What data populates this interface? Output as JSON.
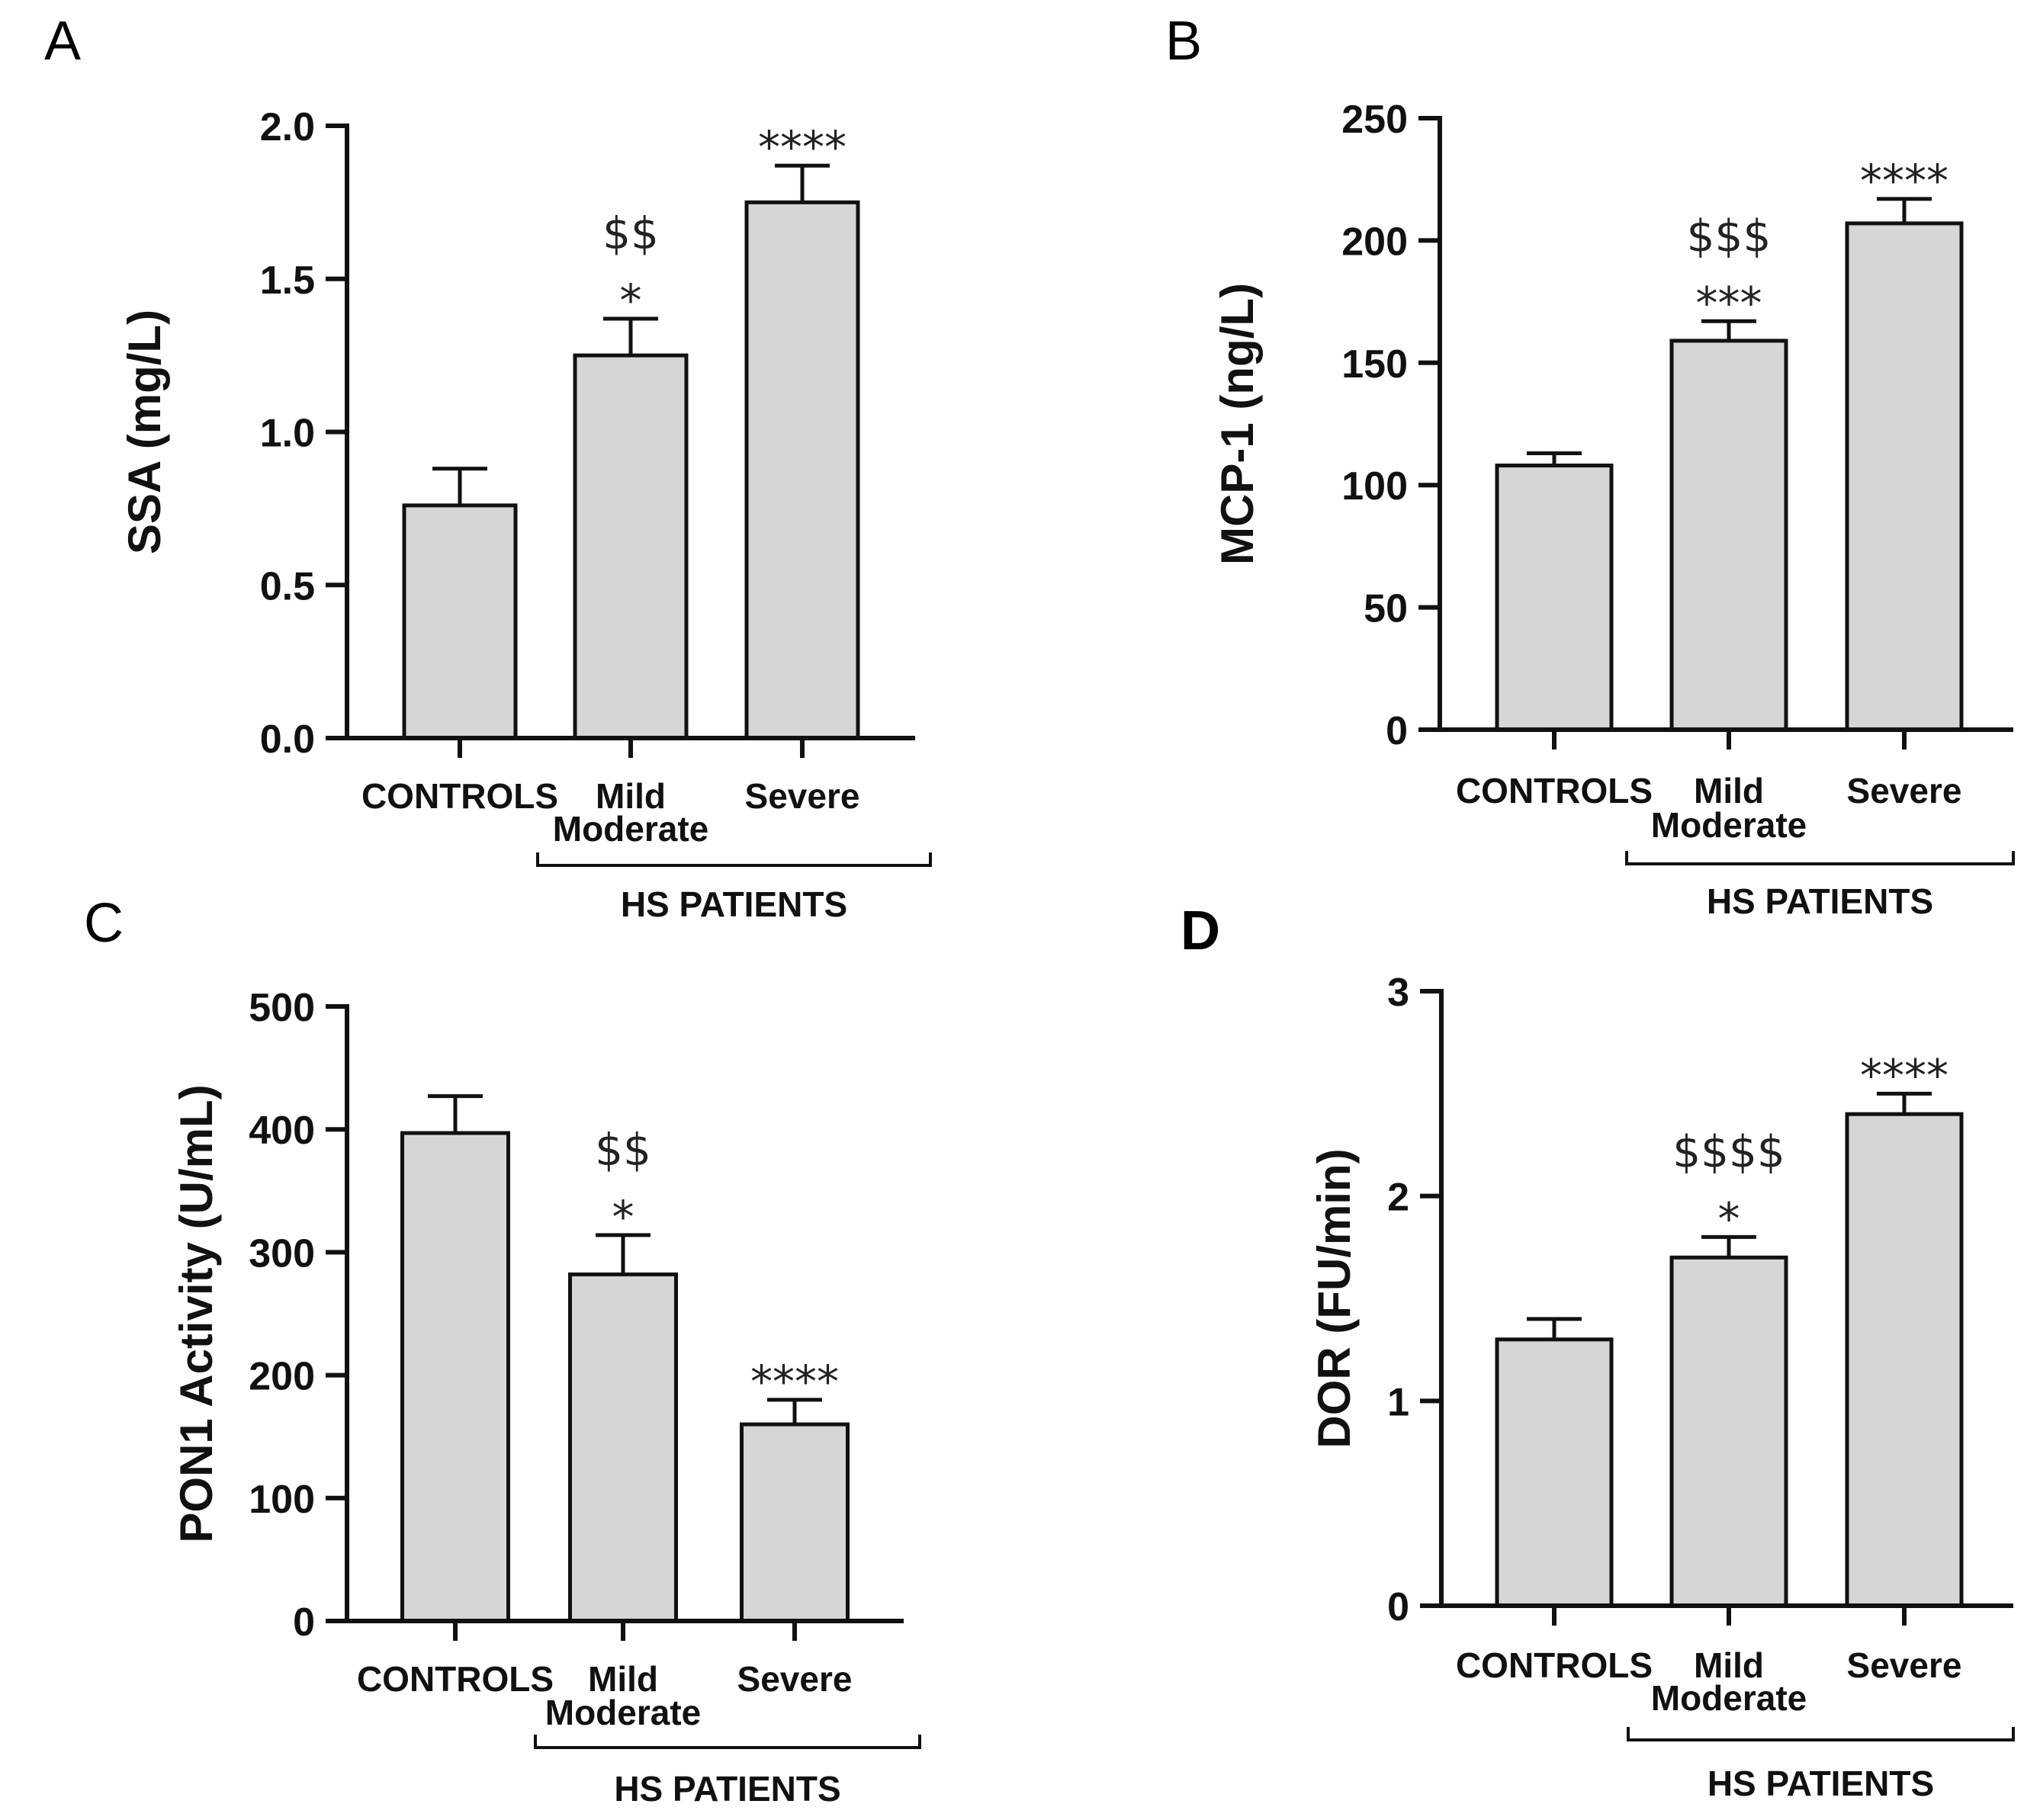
{
  "chart_data": [
    {
      "type": "bar",
      "panel": "A",
      "categories": [
        "CONTROLS",
        "Mild\nModerate",
        "Severe"
      ],
      "values": [
        0.76,
        1.25,
        1.75
      ],
      "errors": [
        0.12,
        0.12,
        0.12
      ],
      "significance": [
        "",
        "$$\n*",
        "****"
      ],
      "ylabel": "SSA (mg/L)",
      "ylim": [
        0,
        2.0
      ],
      "yticks": [
        0.0,
        0.5,
        1.0,
        1.5,
        2.0
      ],
      "ytick_labels": [
        "0.0",
        "0.5",
        "1.0",
        "1.5",
        "2.0"
      ],
      "group_label": "HS PATIENTS",
      "grid": false
    },
    {
      "type": "bar",
      "panel": "B",
      "categories": [
        "CONTROLS",
        "Mild\nModerate",
        "Severe"
      ],
      "values": [
        108,
        159,
        207
      ],
      "errors": [
        5,
        8,
        10
      ],
      "significance": [
        "",
        "$$$\n***",
        "****"
      ],
      "ylabel": "MCP-1 (ng/L)",
      "ylim": [
        0,
        250
      ],
      "yticks": [
        0,
        50,
        100,
        150,
        200,
        250
      ],
      "ytick_labels": [
        "0",
        "50",
        "100",
        "150",
        "200",
        "250"
      ],
      "group_label": "HS PATIENTS",
      "grid": false
    },
    {
      "type": "bar",
      "panel": "C",
      "categories": [
        "CONTROLS",
        "Mild\nModerate",
        "Severe"
      ],
      "values": [
        397,
        282,
        160
      ],
      "errors": [
        30,
        32,
        20
      ],
      "significance": [
        "",
        "$$\n*",
        "****"
      ],
      "ylabel": "PON1 Activity (U/mL)",
      "ylim": [
        0,
        500
      ],
      "yticks": [
        0,
        100,
        200,
        300,
        400,
        500
      ],
      "ytick_labels": [
        "0",
        "100",
        "200",
        "300",
        "400",
        "500"
      ],
      "group_label": "HS PATIENTS",
      "grid": false
    },
    {
      "type": "bar",
      "panel": "D",
      "categories": [
        "CONTROLS",
        "Mild\nModerate",
        "Severe"
      ],
      "values": [
        1.3,
        1.7,
        2.4
      ],
      "errors": [
        0.1,
        0.1,
        0.1
      ],
      "significance": [
        "",
        "$$$$\n*",
        "****"
      ],
      "ylabel": "DOR (FU/min)",
      "ylim": [
        0,
        3
      ],
      "yticks": [
        0,
        1,
        2,
        3
      ],
      "ytick_labels": [
        "0",
        "1",
        "2",
        "3"
      ],
      "group_label": "HS PATIENTS",
      "grid": false
    }
  ],
  "colors": {
    "bar_fill": "#d6d6d6",
    "bar_stroke": "#111111",
    "background": "#ffffff"
  }
}
